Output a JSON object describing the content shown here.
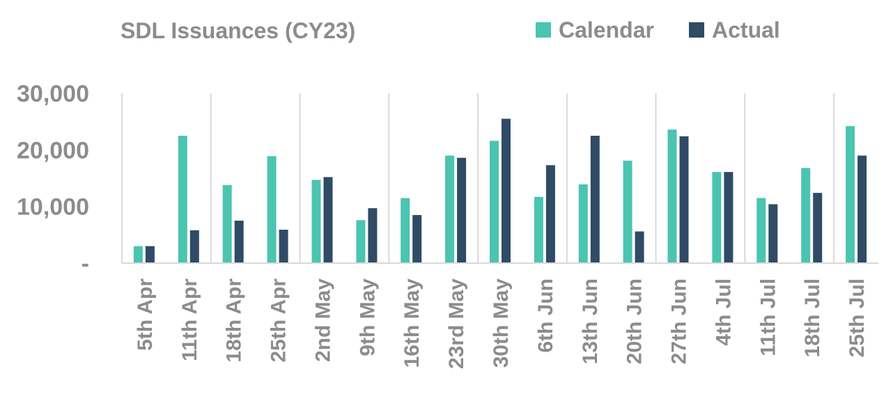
{
  "chart_data": {
    "type": "bar",
    "title": "SDL Issuances (CY23)",
    "xlabel": "",
    "ylabel": "",
    "categories": [
      "5th Apr",
      "11th Apr",
      "18th Apr",
      "25th Apr",
      "2nd May",
      "9th May",
      "16th May",
      "23rd May",
      "30th May",
      "6th Jun",
      "13th Jun",
      "20th Jun",
      "27th Jun",
      "4th Jul",
      "11th Jul",
      "18th Jul",
      "25th Jul"
    ],
    "series": [
      {
        "name": "Calendar",
        "color": "#4bc4b0",
        "values": [
          3000,
          22500,
          13800,
          18900,
          14700,
          7600,
          11500,
          19000,
          21600,
          11700,
          13900,
          18100,
          23600,
          16100,
          11500,
          16800,
          24200
        ]
      },
      {
        "name": "Actual",
        "color": "#2f4b65",
        "values": [
          3000,
          5800,
          7500,
          5900,
          15200,
          9700,
          8500,
          18600,
          25500,
          17300,
          22500,
          5600,
          22400,
          16100,
          10400,
          12400,
          19000
        ]
      }
    ],
    "ylim": [
      0,
      30000
    ],
    "yticks": [
      {
        "value": 0,
        "label": "-"
      },
      {
        "value": 10000,
        "label": "10,000"
      },
      {
        "value": 20000,
        "label": "20,000"
      },
      {
        "value": 30000,
        "label": "30,000"
      }
    ],
    "grid": "vertical separators",
    "legend": "top-right"
  }
}
